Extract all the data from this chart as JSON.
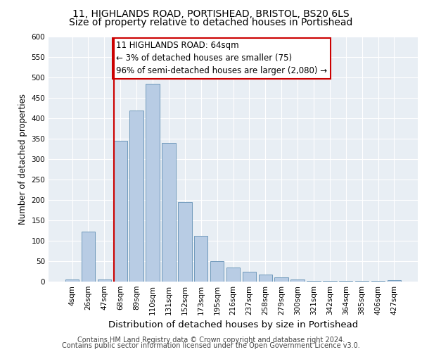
{
  "title1": "11, HIGHLANDS ROAD, PORTISHEAD, BRISTOL, BS20 6LS",
  "title2": "Size of property relative to detached houses in Portishead",
  "xlabel": "Distribution of detached houses by size in Portishead",
  "ylabel": "Number of detached properties",
  "categories": [
    "4sqm",
    "26sqm",
    "47sqm",
    "68sqm",
    "89sqm",
    "110sqm",
    "131sqm",
    "152sqm",
    "173sqm",
    "195sqm",
    "216sqm",
    "237sqm",
    "258sqm",
    "279sqm",
    "300sqm",
    "321sqm",
    "342sqm",
    "364sqm",
    "385sqm",
    "406sqm",
    "427sqm"
  ],
  "values": [
    5,
    122,
    5,
    345,
    420,
    485,
    340,
    195,
    112,
    50,
    35,
    25,
    18,
    10,
    6,
    2,
    2,
    1,
    2,
    1,
    4
  ],
  "bar_color": "#b8cce4",
  "bar_edge_color": "#7099bb",
  "vline_color": "#cc0000",
  "annotation_text": "11 HIGHLANDS ROAD: 64sqm\n← 3% of detached houses are smaller (75)\n96% of semi-detached houses are larger (2,080) →",
  "annotation_box_color": "#ffffff",
  "annotation_box_edge": "#cc0000",
  "ylim": [
    0,
    600
  ],
  "yticks": [
    0,
    50,
    100,
    150,
    200,
    250,
    300,
    350,
    400,
    450,
    500,
    550,
    600
  ],
  "background_color": "#e8eef4",
  "grid_color": "#ffffff",
  "footer1": "Contains HM Land Registry data © Crown copyright and database right 2024.",
  "footer2": "Contains public sector information licensed under the Open Government Licence v3.0.",
  "title1_fontsize": 10,
  "title2_fontsize": 10,
  "xlabel_fontsize": 9.5,
  "ylabel_fontsize": 8.5,
  "tick_fontsize": 7.5,
  "annotation_fontsize": 8.5,
  "footer_fontsize": 7
}
